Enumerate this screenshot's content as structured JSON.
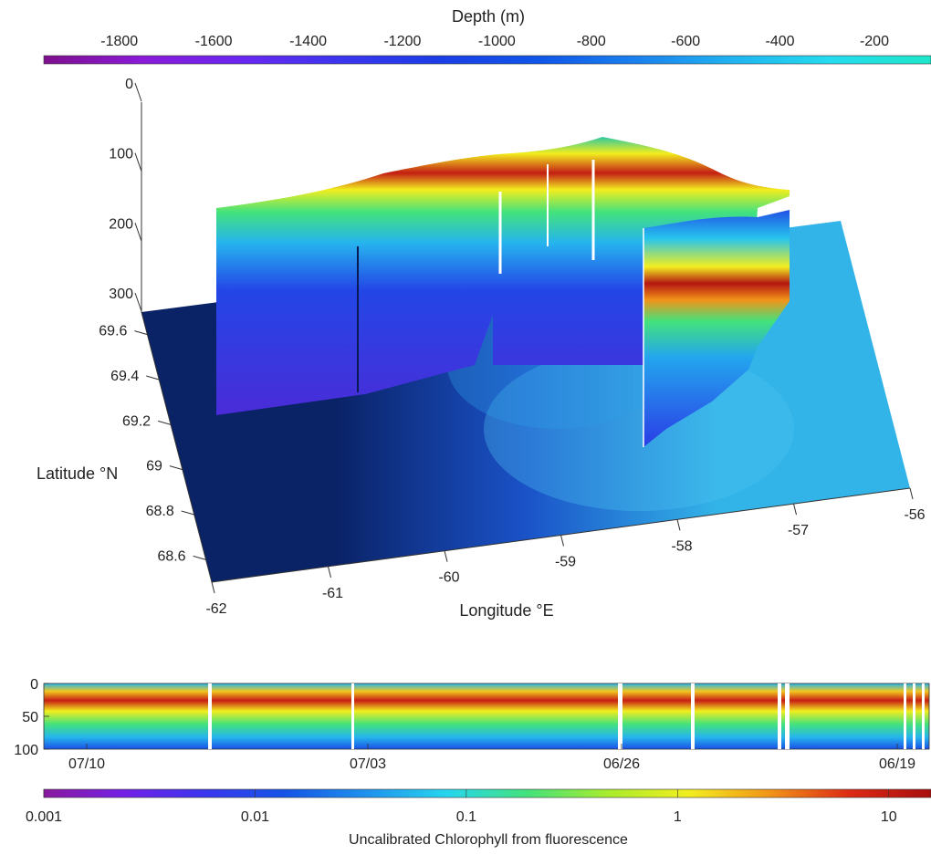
{
  "colors": {
    "depth_bar": [
      "#7e0f8c",
      "#8a1ad8",
      "#6a27f0",
      "#3c35ee",
      "#1b3de6",
      "#0f55e8",
      "#1a80ee",
      "#20b4f0",
      "#25dcee",
      "#1de6c8"
    ],
    "chl_bar": [
      "#8a1a9e",
      "#7320e6",
      "#3a36ee",
      "#1556e6",
      "#1f92ee",
      "#26d6ee",
      "#43e27c",
      "#a8ec2c",
      "#f2ee1e",
      "#f29418",
      "#dc2a14",
      "#a80e0e"
    ],
    "sea_dark": "#0a2266",
    "sea_light": "#33b4e8"
  },
  "chart_data": [
    {
      "type": "heatmap",
      "title": "",
      "colorbar": {
        "label": "Depth (m)",
        "ticks": [
          "-1800",
          "-1600",
          "-1400",
          "-1200",
          "-1000",
          "-800",
          "-600",
          "-400",
          "-200"
        ],
        "values": [
          -1800,
          -1600,
          -1400,
          -1200,
          -1000,
          -800,
          -600,
          -400,
          -200
        ],
        "range": [
          -1960,
          -80
        ],
        "position": "top"
      },
      "axes": {
        "x": {
          "label": "Longitude °E",
          "ticks": [
            "-62",
            "-61",
            "-60",
            "-59",
            "-58",
            "-57",
            "-56"
          ],
          "range": [
            -62,
            -56
          ]
        },
        "y": {
          "label": "Latitude °N",
          "ticks": [
            "68.6",
            "68.8",
            "69",
            "69.2",
            "69.4",
            "69.6"
          ],
          "range": [
            68.5,
            69.7
          ]
        },
        "z": {
          "label": "",
          "ticks": [
            "0",
            "100",
            "200",
            "300"
          ],
          "range": [
            0,
            300
          ],
          "reversed": true
        }
      },
      "surface": "bathymetry colored by depth",
      "curtain": "chlorophyll section along glider track, 0-300 m, max near 100 m depth"
    },
    {
      "type": "heatmap",
      "title": "",
      "y": {
        "label": "",
        "ticks": [
          "0",
          "50",
          "100"
        ],
        "range": [
          0,
          100
        ],
        "reversed": true
      },
      "x": {
        "label": "",
        "ticks": [
          "07/10",
          "07/03",
          "06/26",
          "06/19"
        ]
      },
      "note": "time runs right-to-left (07/10 left, 06/19 right); chlorophyll maximum at ~25-50 m"
    },
    {
      "type": "heatmap",
      "title": "",
      "colorbar": {
        "label": "Uncalibrated Chlorophyll from fluorescence",
        "scale": "log",
        "ticks": [
          "0.001",
          "0.01",
          "0.1",
          "1",
          "10"
        ],
        "values": [
          0.001,
          0.01,
          0.1,
          1,
          10
        ],
        "position": "bottom"
      }
    }
  ]
}
